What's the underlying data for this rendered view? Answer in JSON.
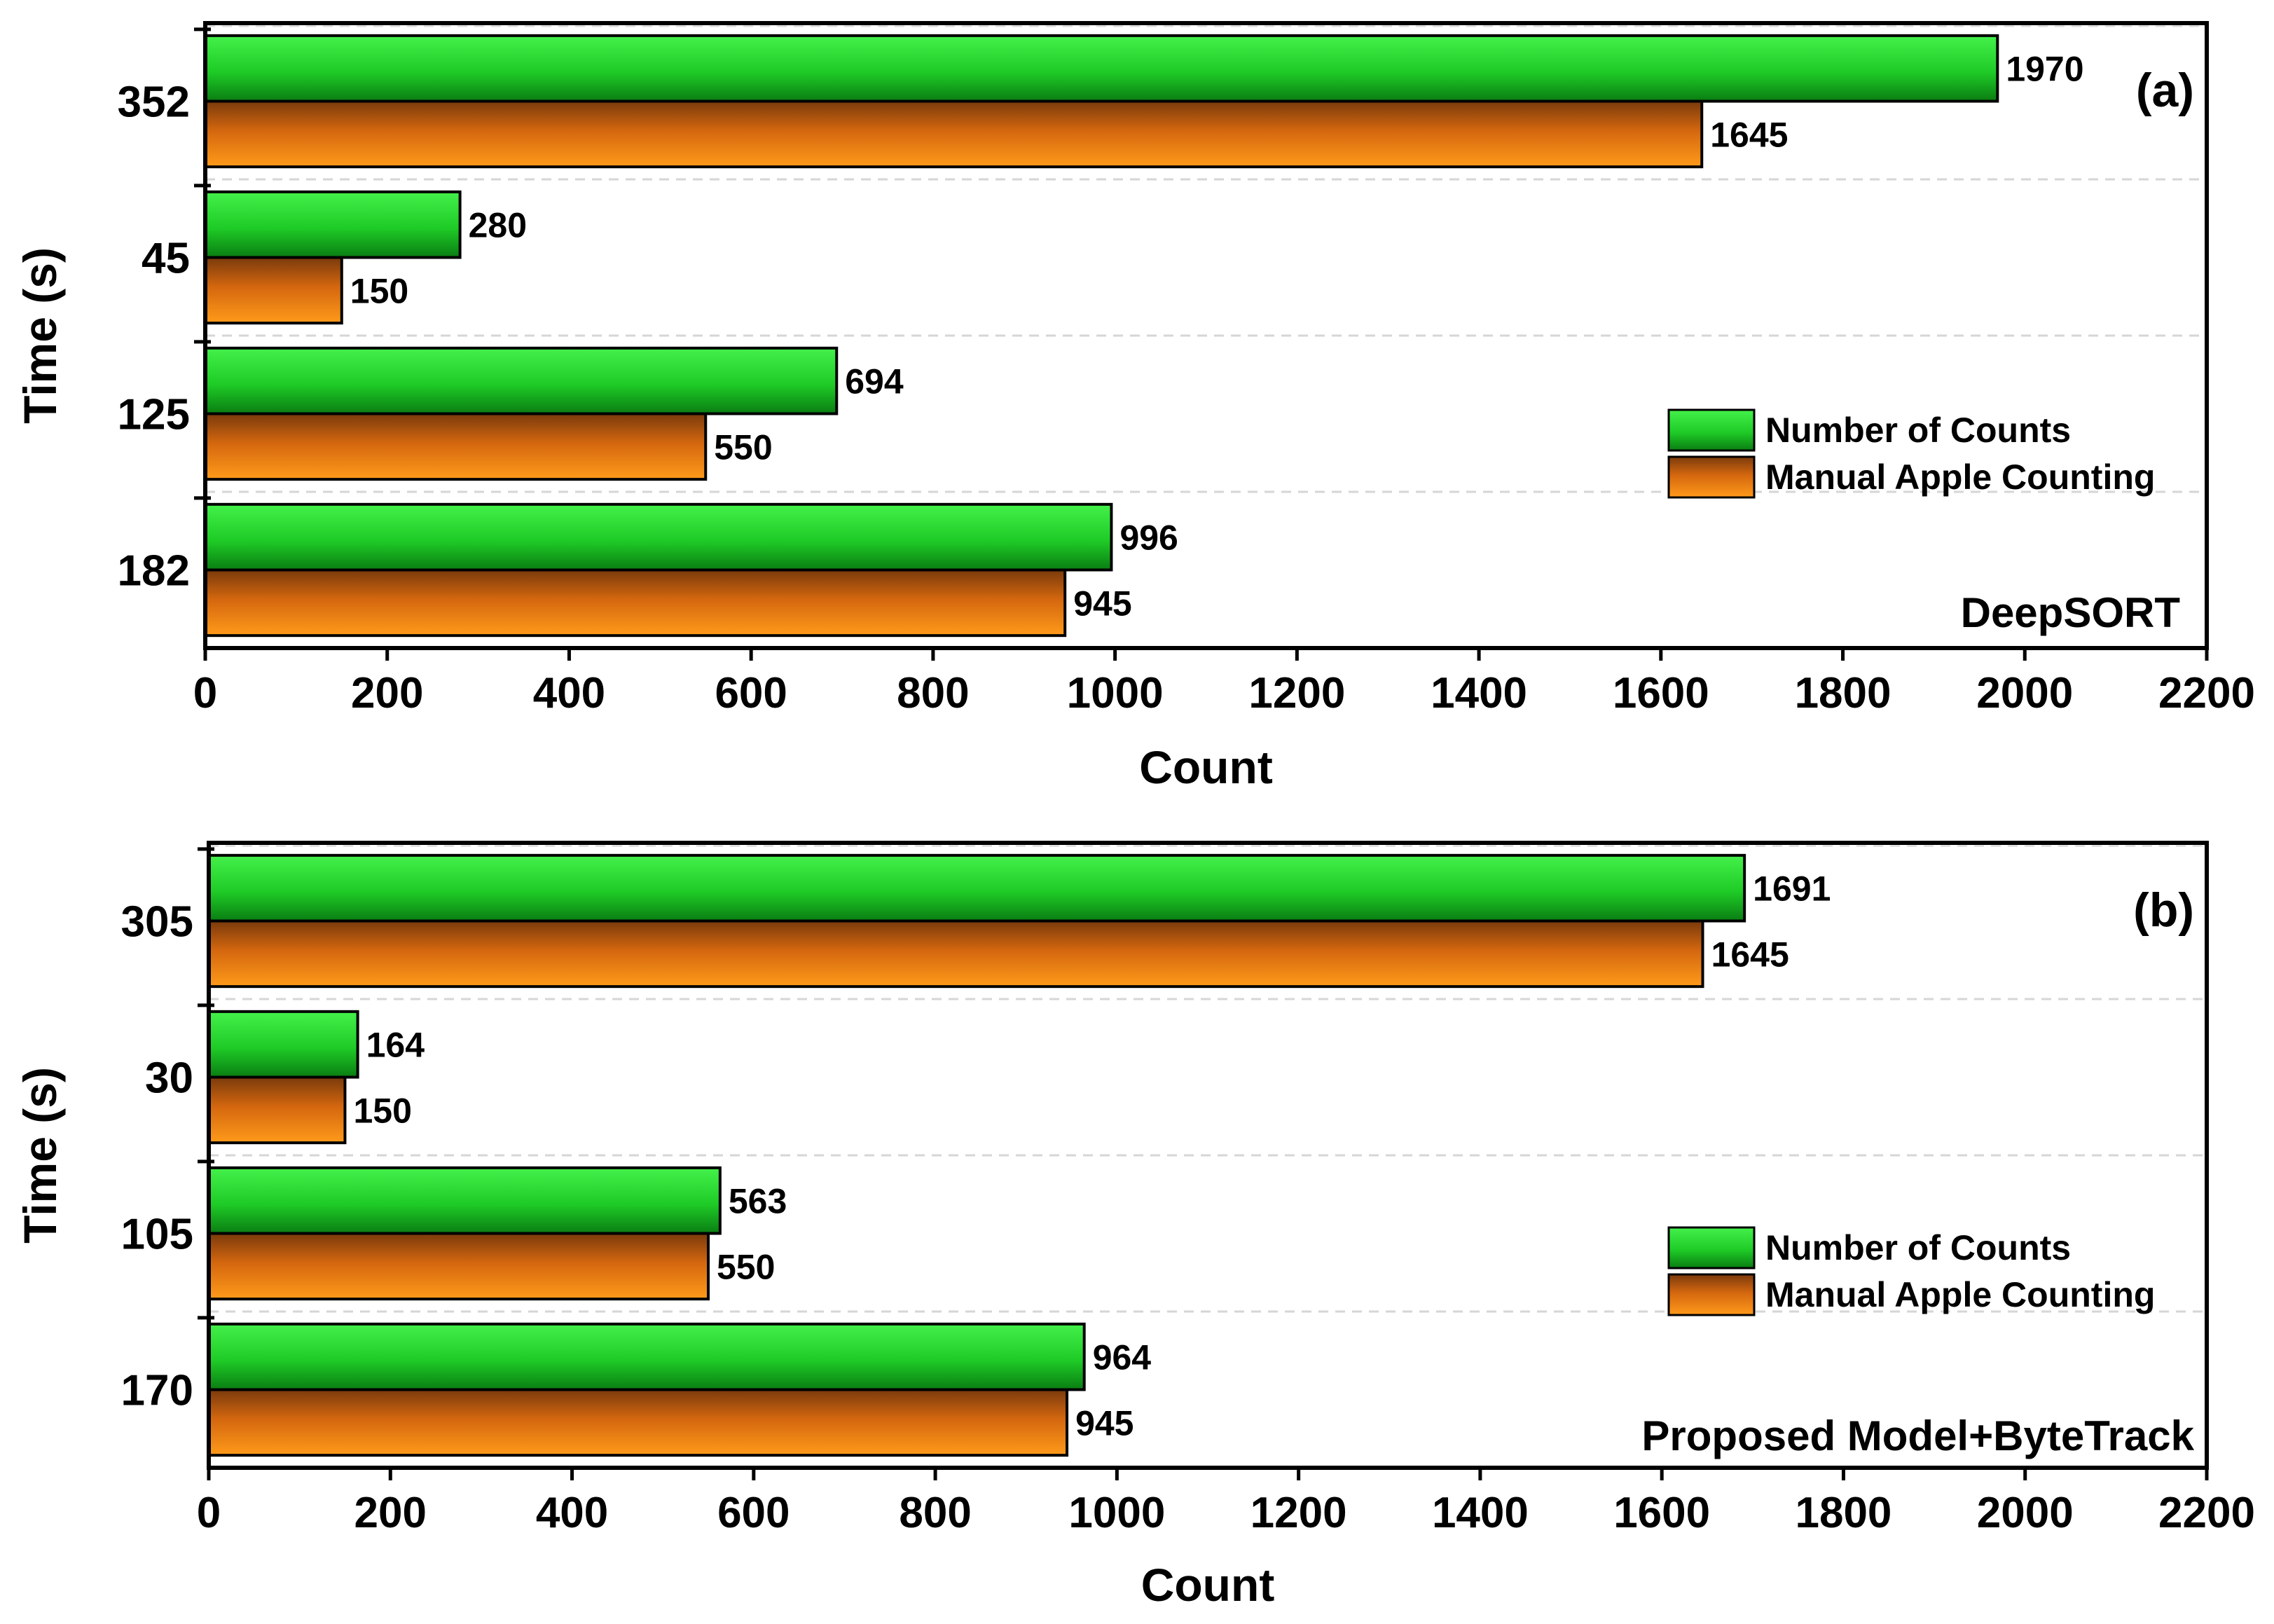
{
  "colors": {
    "series_green": "#22d62a",
    "series_green_dark": "#0a7d12",
    "series_orange": "#ff8a0f",
    "series_orange_dark": "#7a3a0c",
    "frame": "#000000",
    "grid": "#d6d6d6"
  },
  "chart_data": [
    {
      "type": "bar",
      "orientation": "horizontal",
      "panel_label": "(a)",
      "method_label": "DeepSORT",
      "categories": [
        "352",
        "45",
        "125",
        "182"
      ],
      "series": [
        {
          "name": "Number of Counts",
          "values": [
            1970,
            280,
            694,
            996
          ]
        },
        {
          "name": "Manual Apple Counting",
          "values": [
            1645,
            150,
            550,
            945
          ]
        }
      ],
      "xlabel": "Count",
      "ylabel": "Time (s)",
      "xlim": [
        0,
        2200
      ],
      "xticks": [
        "0",
        "200",
        "400",
        "600",
        "800",
        "1000",
        "1200",
        "1400",
        "1600",
        "1800",
        "2000",
        "2200"
      ],
      "legend_position": "right",
      "grid": "horizontal dashed"
    },
    {
      "type": "bar",
      "orientation": "horizontal",
      "panel_label": "(b)",
      "method_label": "Proposed Model+ByteTrack",
      "categories": [
        "305",
        "30",
        "105",
        "170"
      ],
      "series": [
        {
          "name": "Number of Counts",
          "values": [
            1691,
            164,
            563,
            964
          ]
        },
        {
          "name": "Manual Apple Counting",
          "values": [
            1645,
            150,
            550,
            945
          ]
        }
      ],
      "xlabel": "Count",
      "ylabel": "Time (s)",
      "xlim": [
        0,
        2200
      ],
      "xticks": [
        "0",
        "200",
        "400",
        "600",
        "800",
        "1000",
        "1200",
        "1400",
        "1600",
        "1800",
        "2000",
        "2200"
      ],
      "legend_position": "right",
      "grid": "horizontal dashed"
    }
  ]
}
